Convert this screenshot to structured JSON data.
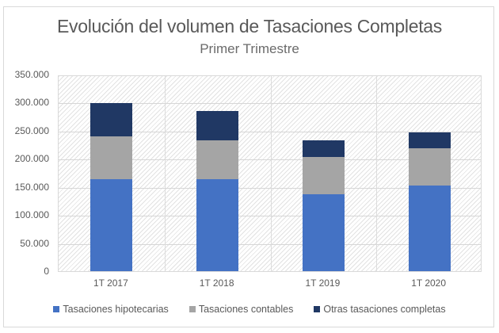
{
  "chart_data": {
    "type": "bar",
    "stacked": true,
    "title": "Evolución del volumen de Tasaciones Completas",
    "subtitle": "Primer Trimestre",
    "xlabel": "",
    "ylabel": "",
    "ylim": [
      0,
      350000
    ],
    "yticks": [
      "0",
      "50.000",
      "100.000",
      "150.000",
      "200.000",
      "250.000",
      "300.000",
      "350.000"
    ],
    "categories": [
      "1T 2017",
      "1T 2018",
      "1T 2019",
      "1T 2020"
    ],
    "series": [
      {
        "name": "Tasaciones hipotecarias",
        "color": "#4472c4",
        "values": [
          164000,
          164000,
          137000,
          152000
        ]
      },
      {
        "name": "Tasaciones contables",
        "color": "#a5a5a5",
        "values": [
          76000,
          69000,
          66000,
          67000
        ]
      },
      {
        "name": "Otras tasaciones completas",
        "color": "#203864",
        "values": [
          59000,
          52000,
          30000,
          28000
        ]
      }
    ],
    "grid": true,
    "legend_position": "bottom"
  }
}
